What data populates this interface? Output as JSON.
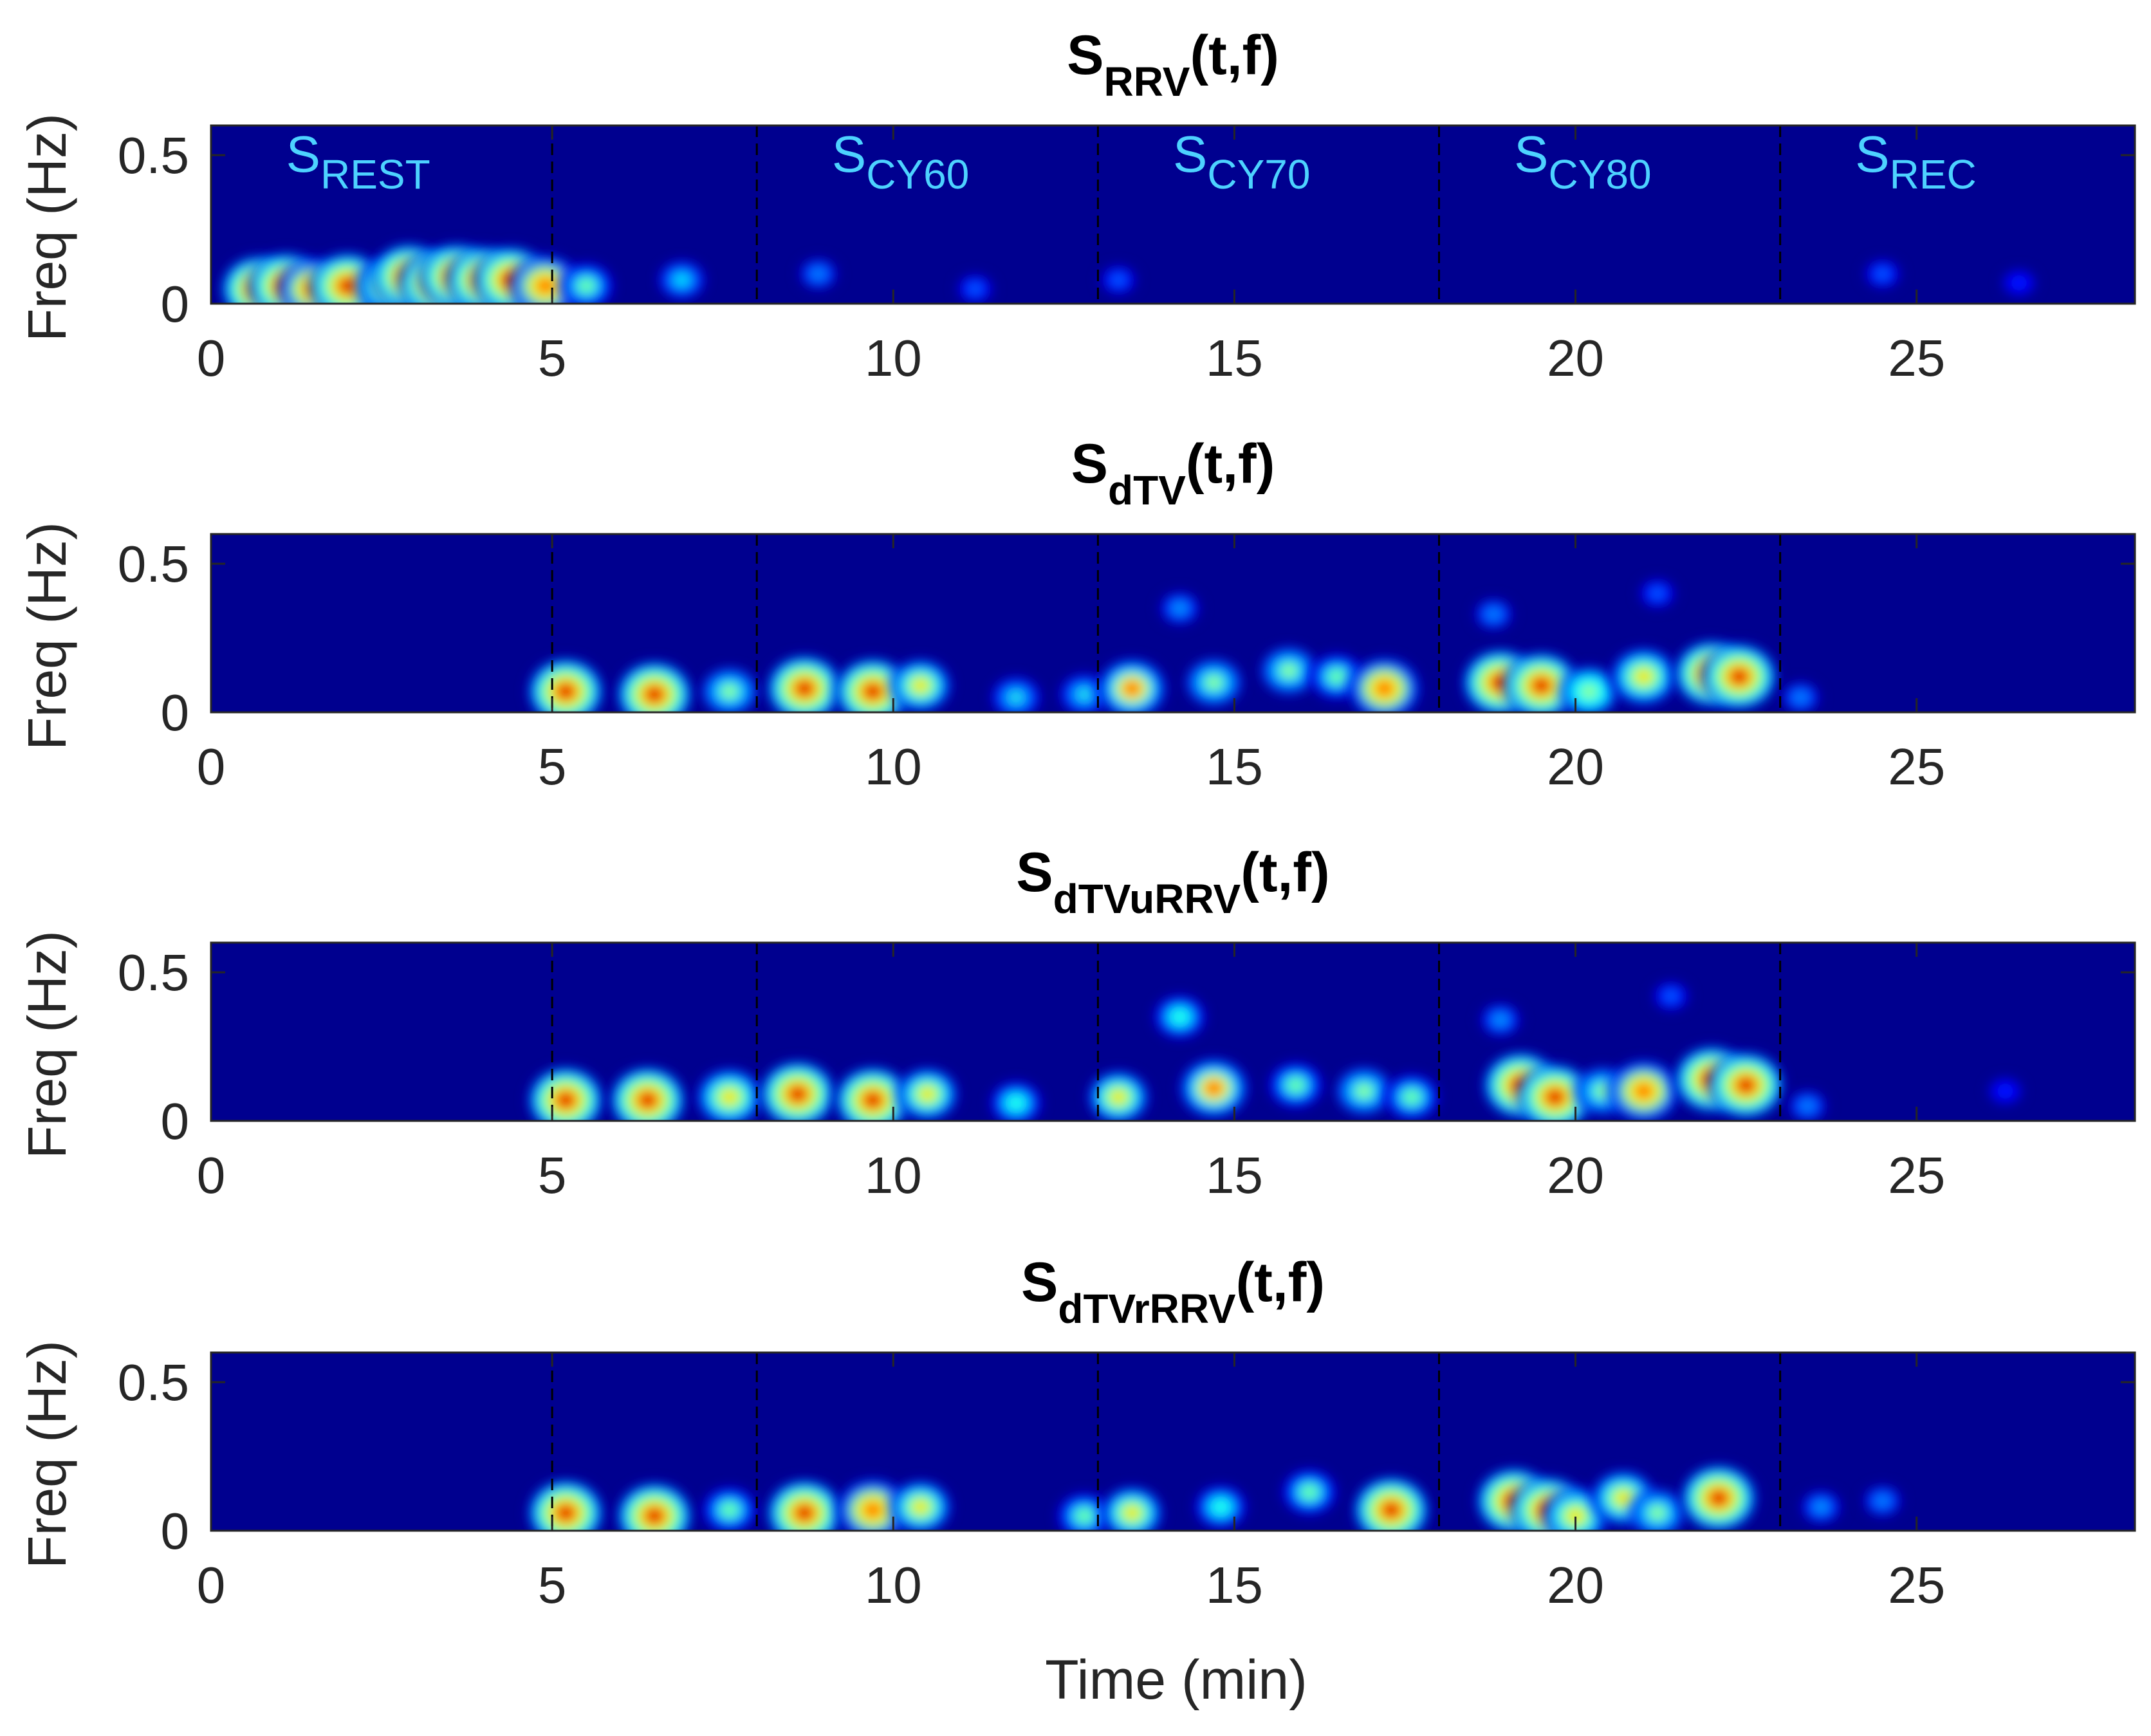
{
  "figure": {
    "xlabel": "Time (min)"
  },
  "styles": {
    "background_color": "#00008f",
    "frame_color": "#262626",
    "text_color": "#262626",
    "title_color": "#000000",
    "segment_label_color": "#4dd2ff",
    "divider_color": "#000000"
  },
  "colormap": [
    "#00008f",
    "#0000ff",
    "#0080ff",
    "#00ffff",
    "#80ff80",
    "#ffff00",
    "#ff8000",
    "#ff0000",
    "#800000"
  ],
  "segments": {
    "boundaries": [
      5,
      8,
      13,
      18,
      23
    ],
    "labels": [
      {
        "main": "S",
        "sub": "REST",
        "t": 1.1
      },
      {
        "main": "S",
        "sub": "CY60",
        "t": 9.1
      },
      {
        "main": "S",
        "sub": "CY70",
        "t": 14.1
      },
      {
        "main": "S",
        "sub": "CY80",
        "t": 19.1
      },
      {
        "main": "S",
        "sub": "REC",
        "t": 24.1
      }
    ]
  },
  "chart_data": [
    {
      "type": "heatmap",
      "title_main": "S",
      "title_sub": "RRV",
      "title_suffix": "(t,f)",
      "xlabel": "",
      "ylabel": "Freq (Hz)",
      "xlim": [
        0,
        28.2
      ],
      "ylim": [
        0,
        0.6
      ],
      "xticks": [
        0,
        5,
        10,
        15,
        20,
        25
      ],
      "yticks": [
        0,
        0.5
      ],
      "show_segment_labels": true,
      "blobs": [
        {
          "t": 0.7,
          "f": 0.05,
          "intensity": 1.0
        },
        {
          "t": 1.1,
          "f": 0.06,
          "intensity": 1.0
        },
        {
          "t": 1.5,
          "f": 0.05,
          "intensity": 0.9
        },
        {
          "t": 2.0,
          "f": 0.06,
          "intensity": 1.0
        },
        {
          "t": 2.6,
          "f": 0.06,
          "intensity": 0.8
        },
        {
          "t": 2.9,
          "f": 0.09,
          "intensity": 1.0
        },
        {
          "t": 3.3,
          "f": 0.07,
          "intensity": 1.0
        },
        {
          "t": 3.6,
          "f": 0.09,
          "intensity": 1.0
        },
        {
          "t": 4.0,
          "f": 0.08,
          "intensity": 1.0
        },
        {
          "t": 4.4,
          "f": 0.08,
          "intensity": 1.0
        },
        {
          "t": 4.9,
          "f": 0.06,
          "intensity": 0.9
        },
        {
          "t": 5.5,
          "f": 0.06,
          "intensity": 0.55
        },
        {
          "t": 6.9,
          "f": 0.08,
          "intensity": 0.4
        },
        {
          "t": 8.9,
          "f": 0.1,
          "intensity": 0.3
        },
        {
          "t": 11.2,
          "f": 0.05,
          "intensity": 0.25
        },
        {
          "t": 13.3,
          "f": 0.08,
          "intensity": 0.25
        },
        {
          "t": 24.5,
          "f": 0.1,
          "intensity": 0.25
        },
        {
          "t": 26.5,
          "f": 0.07,
          "intensity": 0.2
        }
      ]
    },
    {
      "type": "heatmap",
      "title_main": "S",
      "title_sub": "dTV",
      "title_suffix": "(t,f)",
      "xlabel": "",
      "ylabel": "Freq (Hz)",
      "xlim": [
        0,
        28.2
      ],
      "ylim": [
        0,
        0.6
      ],
      "xticks": [
        0,
        5,
        10,
        15,
        20,
        25
      ],
      "yticks": [
        0,
        0.5
      ],
      "show_segment_labels": false,
      "blobs": [
        {
          "t": 5.2,
          "f": 0.07,
          "intensity": 1.0
        },
        {
          "t": 6.5,
          "f": 0.06,
          "intensity": 1.0
        },
        {
          "t": 7.6,
          "f": 0.07,
          "intensity": 0.6
        },
        {
          "t": 8.7,
          "f": 0.08,
          "intensity": 1.0
        },
        {
          "t": 9.7,
          "f": 0.07,
          "intensity": 1.0
        },
        {
          "t": 10.4,
          "f": 0.09,
          "intensity": 0.7
        },
        {
          "t": 11.8,
          "f": 0.05,
          "intensity": 0.45
        },
        {
          "t": 12.8,
          "f": 0.06,
          "intensity": 0.45
        },
        {
          "t": 13.5,
          "f": 0.08,
          "intensity": 0.85
        },
        {
          "t": 14.7,
          "f": 0.1,
          "intensity": 0.6
        },
        {
          "t": 15.8,
          "f": 0.14,
          "intensity": 0.6
        },
        {
          "t": 16.5,
          "f": 0.12,
          "intensity": 0.55
        },
        {
          "t": 17.2,
          "f": 0.08,
          "intensity": 0.9
        },
        {
          "t": 18.9,
          "f": 0.1,
          "intensity": 1.0
        },
        {
          "t": 19.5,
          "f": 0.09,
          "intensity": 1.0
        },
        {
          "t": 20.2,
          "f": 0.07,
          "intensity": 0.65
        },
        {
          "t": 21.0,
          "f": 0.12,
          "intensity": 0.8
        },
        {
          "t": 22.0,
          "f": 0.13,
          "intensity": 1.0
        },
        {
          "t": 22.4,
          "f": 0.12,
          "intensity": 1.0
        },
        {
          "t": 23.3,
          "f": 0.05,
          "intensity": 0.3
        },
        {
          "t": 14.2,
          "f": 0.35,
          "intensity": 0.35
        },
        {
          "t": 18.8,
          "f": 0.33,
          "intensity": 0.3
        },
        {
          "t": 21.2,
          "f": 0.4,
          "intensity": 0.25
        }
      ]
    },
    {
      "type": "heatmap",
      "title_main": "S",
      "title_sub": "dTVuRRV",
      "title_suffix": "(t,f)",
      "xlabel": "",
      "ylabel": "Freq (Hz)",
      "xlim": [
        0,
        28.2
      ],
      "ylim": [
        0,
        0.6
      ],
      "xticks": [
        0,
        5,
        10,
        15,
        20,
        25
      ],
      "yticks": [
        0,
        0.5
      ],
      "show_segment_labels": false,
      "blobs": [
        {
          "t": 5.2,
          "f": 0.07,
          "intensity": 1.0
        },
        {
          "t": 6.4,
          "f": 0.07,
          "intensity": 1.0
        },
        {
          "t": 7.6,
          "f": 0.08,
          "intensity": 0.8
        },
        {
          "t": 8.6,
          "f": 0.09,
          "intensity": 1.0
        },
        {
          "t": 9.7,
          "f": 0.07,
          "intensity": 1.0
        },
        {
          "t": 10.5,
          "f": 0.09,
          "intensity": 0.7
        },
        {
          "t": 11.8,
          "f": 0.06,
          "intensity": 0.5
        },
        {
          "t": 13.3,
          "f": 0.08,
          "intensity": 0.7
        },
        {
          "t": 14.7,
          "f": 0.11,
          "intensity": 0.85
        },
        {
          "t": 15.9,
          "f": 0.12,
          "intensity": 0.55
        },
        {
          "t": 16.9,
          "f": 0.1,
          "intensity": 0.6
        },
        {
          "t": 17.6,
          "f": 0.08,
          "intensity": 0.55
        },
        {
          "t": 19.2,
          "f": 0.12,
          "intensity": 1.0
        },
        {
          "t": 19.7,
          "f": 0.08,
          "intensity": 1.0
        },
        {
          "t": 20.4,
          "f": 0.1,
          "intensity": 0.6
        },
        {
          "t": 21.0,
          "f": 0.1,
          "intensity": 0.9
        },
        {
          "t": 22.0,
          "f": 0.14,
          "intensity": 1.0
        },
        {
          "t": 22.5,
          "f": 0.12,
          "intensity": 1.0
        },
        {
          "t": 23.4,
          "f": 0.05,
          "intensity": 0.3
        },
        {
          "t": 14.2,
          "f": 0.35,
          "intensity": 0.5
        },
        {
          "t": 18.9,
          "f": 0.34,
          "intensity": 0.35
        },
        {
          "t": 21.4,
          "f": 0.42,
          "intensity": 0.25
        },
        {
          "t": 26.3,
          "f": 0.1,
          "intensity": 0.2
        }
      ]
    },
    {
      "type": "heatmap",
      "title_main": "S",
      "title_sub": "dTVrRRV",
      "title_suffix": "(t,f)",
      "xlabel": "Time (min)",
      "ylabel": "Freq (Hz)",
      "xlim": [
        0,
        28.2
      ],
      "ylim": [
        0,
        0.6
      ],
      "xticks": [
        0,
        5,
        10,
        15,
        20,
        25
      ],
      "yticks": [
        0,
        0.5
      ],
      "show_segment_labels": false,
      "blobs": [
        {
          "t": 5.2,
          "f": 0.06,
          "intensity": 1.0
        },
        {
          "t": 6.5,
          "f": 0.05,
          "intensity": 1.0
        },
        {
          "t": 7.6,
          "f": 0.07,
          "intensity": 0.55
        },
        {
          "t": 8.7,
          "f": 0.06,
          "intensity": 1.0
        },
        {
          "t": 9.7,
          "f": 0.07,
          "intensity": 0.9
        },
        {
          "t": 10.4,
          "f": 0.08,
          "intensity": 0.7
        },
        {
          "t": 12.8,
          "f": 0.05,
          "intensity": 0.55
        },
        {
          "t": 13.5,
          "f": 0.06,
          "intensity": 0.7
        },
        {
          "t": 14.8,
          "f": 0.08,
          "intensity": 0.5
        },
        {
          "t": 16.1,
          "f": 0.13,
          "intensity": 0.55
        },
        {
          "t": 17.3,
          "f": 0.07,
          "intensity": 1.0
        },
        {
          "t": 19.1,
          "f": 0.1,
          "intensity": 1.0
        },
        {
          "t": 19.6,
          "f": 0.07,
          "intensity": 1.0
        },
        {
          "t": 20.0,
          "f": 0.05,
          "intensity": 0.8
        },
        {
          "t": 20.7,
          "f": 0.11,
          "intensity": 0.75
        },
        {
          "t": 21.2,
          "f": 0.06,
          "intensity": 0.6
        },
        {
          "t": 22.1,
          "f": 0.11,
          "intensity": 1.0
        },
        {
          "t": 23.6,
          "f": 0.08,
          "intensity": 0.35
        },
        {
          "t": 24.5,
          "f": 0.1,
          "intensity": 0.3
        }
      ]
    }
  ]
}
